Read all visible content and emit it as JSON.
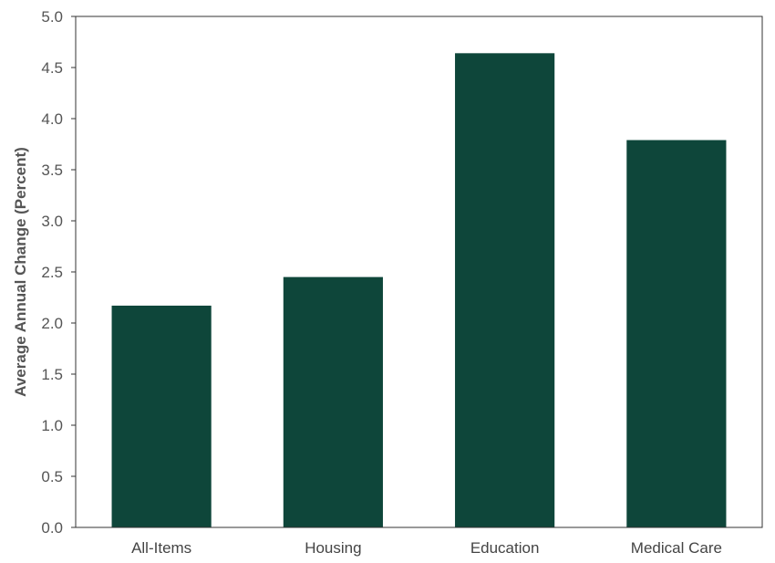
{
  "chart_data": {
    "type": "bar",
    "categories": [
      "All-Items",
      "Housing",
      "Education",
      "Medical Care"
    ],
    "values": [
      2.17,
      2.45,
      4.64,
      3.79
    ],
    "title": "",
    "xlabel": "",
    "ylabel": "Average Annual Change (Percent)",
    "ylim": [
      0,
      5.0
    ],
    "yticks": [
      "0.0",
      "0.5",
      "1.0",
      "1.5",
      "2.0",
      "2.5",
      "3.0",
      "3.5",
      "4.0",
      "4.5",
      "5.0"
    ],
    "grid": false,
    "legend": "none",
    "colors": {
      "bar": "#0e463a",
      "axis": "#333333"
    }
  }
}
